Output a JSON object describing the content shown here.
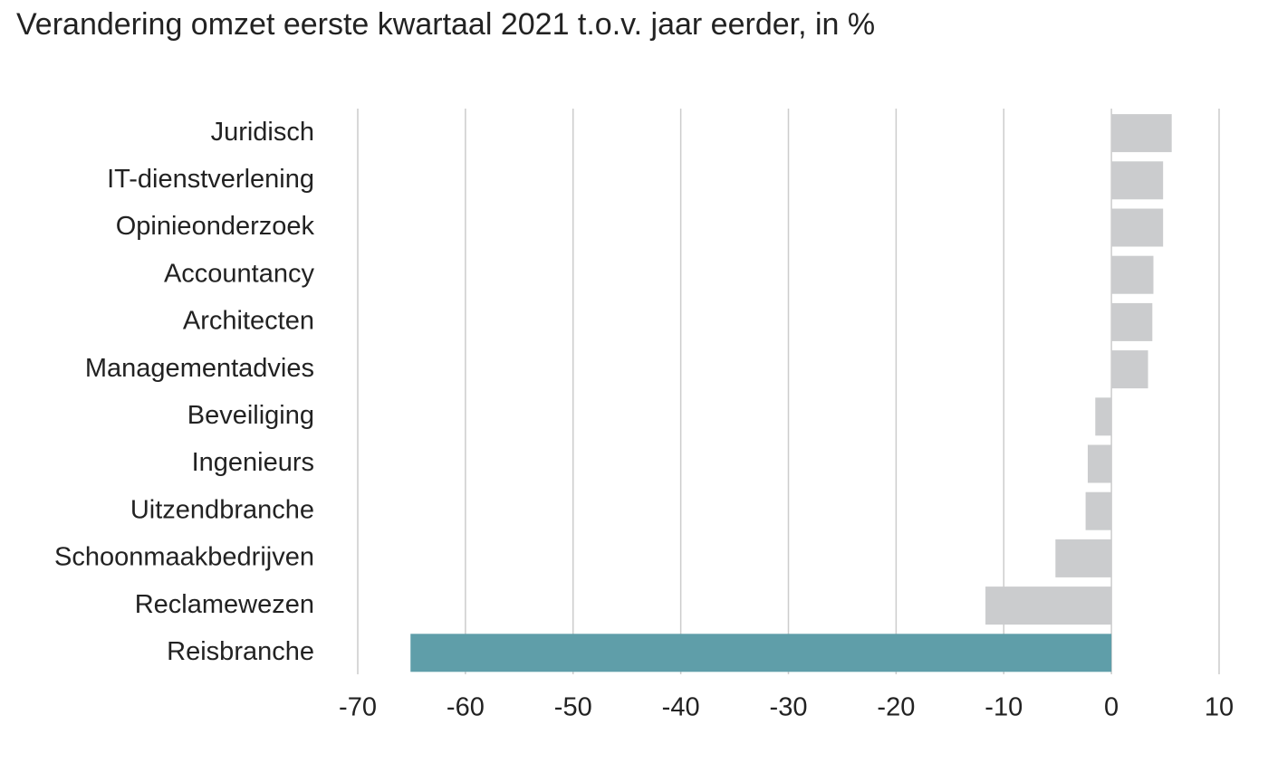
{
  "title": "Verandering omzet eerste kwartaal 2021 t.o.v. jaar eerder, in %",
  "colors": {
    "default_bar": "#cbccce",
    "highlight_bar": "#5f9ea9",
    "grid": "#cccccc"
  },
  "chart_data": {
    "type": "bar",
    "orientation": "horizontal",
    "title": "Verandering omzet eerste kwartaal 2021 t.o.v. jaar eerder, in %",
    "categories": [
      "Juridisch",
      "IT-dienstverlening",
      "Opinieonderzoek",
      "Accountancy",
      "Architecten",
      "Managementadvies",
      "Beveiliging",
      "Ingenieurs",
      "Uitzendbranche",
      "Schoonmaakbedrijven",
      "Reclamewezen",
      "Reisbranche"
    ],
    "values": [
      5.6,
      4.8,
      4.8,
      3.9,
      3.8,
      3.4,
      -1.5,
      -2.2,
      -2.4,
      -5.2,
      -11.7,
      -65.1
    ],
    "highlight": [
      "Reisbranche"
    ],
    "xlim": [
      -70,
      10
    ],
    "xticks": [
      -70,
      -60,
      -50,
      -40,
      -30,
      -20,
      -10,
      0,
      10
    ],
    "tick_labels": [
      "-70",
      "-60",
      "-50",
      "-40",
      "-30",
      "-20",
      "-10",
      "0",
      "10"
    ],
    "grid": true
  }
}
